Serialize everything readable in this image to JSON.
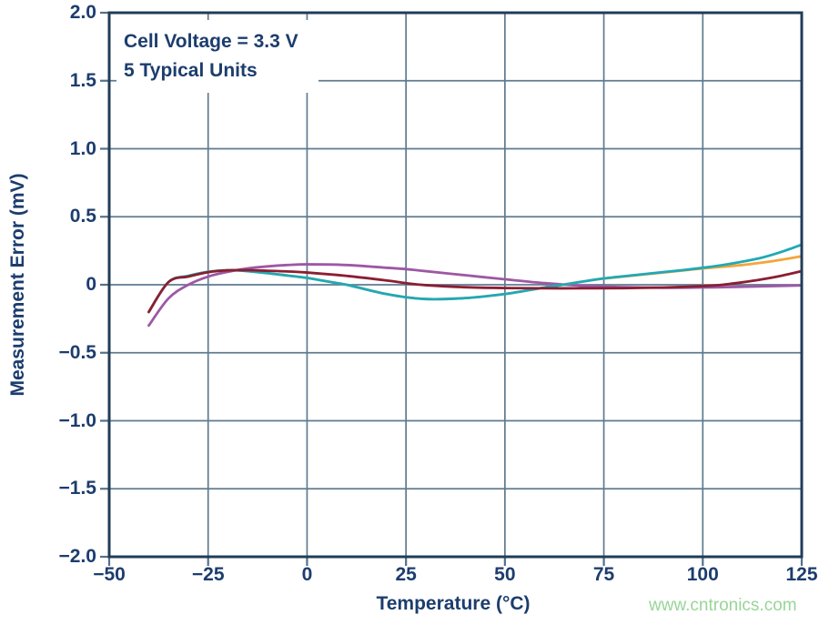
{
  "page": {
    "background": "#FFFFFF"
  },
  "watermark": {
    "text": "www.cntronics.com",
    "color": "#98D598"
  },
  "chart_data": {
    "type": "line",
    "title": "",
    "xlabel": "Temperature (°C)",
    "ylabel": "Measurement Error (mV)",
    "annotation": [
      "Cell Voltage = 3.3 V",
      "5 Typical Units"
    ],
    "xlim": [
      -50,
      125
    ],
    "ylim": [
      -2.0,
      2.0
    ],
    "x_ticks": [
      -50,
      -25,
      0,
      25,
      50,
      75,
      100,
      125
    ],
    "x_tick_labels": [
      "−50",
      "−25",
      "0",
      "25",
      "50",
      "75",
      "100",
      "125"
    ],
    "y_ticks": [
      2.0,
      1.5,
      1.0,
      0.5,
      0,
      -0.5,
      -1.0,
      -1.5,
      -2.0
    ],
    "y_tick_labels": [
      "2.0",
      "1.5",
      "1.0",
      "0.5",
      "0",
      "−0.5",
      "−1.0",
      "−1.5",
      "−2.0"
    ],
    "grid": true,
    "legend": "none",
    "colors": {
      "axis_text": "#1C3D6E",
      "frame": "#203D58",
      "grid": "#5F7A90",
      "tick": "#54708A"
    },
    "series": [
      {
        "name": "unit-purple",
        "color": "#9D58A5",
        "points": [
          [
            -40,
            -0.3
          ],
          [
            -35,
            -0.1
          ],
          [
            -30,
            0.0
          ],
          [
            -25,
            0.06
          ],
          [
            -20,
            0.095
          ],
          [
            -15,
            0.12
          ],
          [
            -10,
            0.135
          ],
          [
            -5,
            0.145
          ],
          [
            0,
            0.15
          ],
          [
            10,
            0.145
          ],
          [
            20,
            0.125
          ],
          [
            25,
            0.115
          ],
          [
            30,
            0.1
          ],
          [
            40,
            0.07
          ],
          [
            50,
            0.04
          ],
          [
            60,
            0.012
          ],
          [
            70,
            -0.008
          ],
          [
            80,
            -0.018
          ],
          [
            90,
            -0.022
          ],
          [
            100,
            -0.02
          ],
          [
            110,
            -0.015
          ],
          [
            125,
            -0.005
          ]
        ]
      },
      {
        "name": "unit-orange",
        "color": "#F4A53B",
        "points": [
          [
            -40,
            -0.2
          ],
          [
            -35,
            0.02
          ],
          [
            -30,
            0.065
          ],
          [
            -25,
            0.095
          ],
          [
            -20,
            0.107
          ],
          [
            -15,
            0.1
          ],
          [
            -10,
            0.085
          ],
          [
            -5,
            0.068
          ],
          [
            0,
            0.05
          ],
          [
            5,
            0.025
          ],
          [
            10,
            0.0
          ],
          [
            15,
            -0.035
          ],
          [
            20,
            -0.068
          ],
          [
            25,
            -0.092
          ],
          [
            30,
            -0.105
          ],
          [
            35,
            -0.105
          ],
          [
            40,
            -0.098
          ],
          [
            45,
            -0.085
          ],
          [
            50,
            -0.068
          ],
          [
            55,
            -0.045
          ],
          [
            60,
            -0.02
          ],
          [
            65,
            0.002
          ],
          [
            70,
            0.025
          ],
          [
            75,
            0.045
          ],
          [
            85,
            0.075
          ],
          [
            95,
            0.105
          ],
          [
            100,
            0.12
          ],
          [
            105,
            0.132
          ],
          [
            110,
            0.145
          ],
          [
            115,
            0.163
          ],
          [
            120,
            0.185
          ],
          [
            125,
            0.21
          ]
        ]
      },
      {
        "name": "unit-teal",
        "color": "#1FA9B6",
        "points": [
          [
            -40,
            -0.2
          ],
          [
            -35,
            0.02
          ],
          [
            -30,
            0.065
          ],
          [
            -25,
            0.095
          ],
          [
            -20,
            0.107
          ],
          [
            -15,
            0.1
          ],
          [
            -10,
            0.085
          ],
          [
            -5,
            0.068
          ],
          [
            0,
            0.05
          ],
          [
            5,
            0.025
          ],
          [
            10,
            0.0
          ],
          [
            15,
            -0.035
          ],
          [
            20,
            -0.068
          ],
          [
            25,
            -0.092
          ],
          [
            30,
            -0.105
          ],
          [
            35,
            -0.105
          ],
          [
            40,
            -0.098
          ],
          [
            45,
            -0.085
          ],
          [
            50,
            -0.068
          ],
          [
            55,
            -0.045
          ],
          [
            60,
            -0.02
          ],
          [
            65,
            0.002
          ],
          [
            70,
            0.025
          ],
          [
            75,
            0.047
          ],
          [
            85,
            0.078
          ],
          [
            95,
            0.108
          ],
          [
            100,
            0.125
          ],
          [
            105,
            0.145
          ],
          [
            110,
            0.17
          ],
          [
            115,
            0.2
          ],
          [
            120,
            0.243
          ],
          [
            125,
            0.295
          ]
        ]
      },
      {
        "name": "unit-darkred",
        "color": "#8B1E33",
        "points": [
          [
            -40,
            -0.2
          ],
          [
            -35,
            0.02
          ],
          [
            -30,
            0.06
          ],
          [
            -25,
            0.092
          ],
          [
            -20,
            0.106
          ],
          [
            -15,
            0.107
          ],
          [
            -10,
            0.103
          ],
          [
            -5,
            0.098
          ],
          [
            0,
            0.09
          ],
          [
            10,
            0.065
          ],
          [
            20,
            0.032
          ],
          [
            25,
            0.012
          ],
          [
            30,
            -0.003
          ],
          [
            40,
            -0.018
          ],
          [
            50,
            -0.024
          ],
          [
            60,
            -0.026
          ],
          [
            70,
            -0.026
          ],
          [
            80,
            -0.025
          ],
          [
            90,
            -0.02
          ],
          [
            100,
            -0.01
          ],
          [
            105,
            0.0
          ],
          [
            110,
            0.018
          ],
          [
            115,
            0.04
          ],
          [
            120,
            0.067
          ],
          [
            125,
            0.1
          ]
        ]
      }
    ]
  }
}
